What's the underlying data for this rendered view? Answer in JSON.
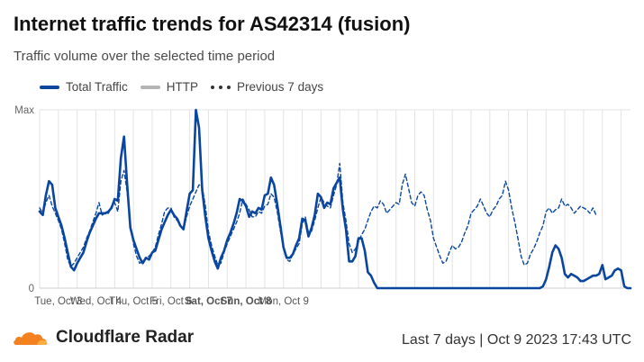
{
  "title": "Internet traffic trends for AS42314 (fusion)",
  "subtitle": "Traffic volume over the selected time period",
  "legend": [
    {
      "name": "Total Traffic"
    },
    {
      "name": "HTTP"
    },
    {
      "name": "Previous 7 days"
    }
  ],
  "footer": {
    "brand": "Cloudflare Radar",
    "info": "Last 7 days | Oct 9 2023 17:43 UTC"
  },
  "colors": {
    "total": "#0a46a0",
    "http": "#b5b5b5",
    "previous": "#0a46a0",
    "grid": "#e3e3e3",
    "logo": "#f48120"
  },
  "chart_data": {
    "type": "line",
    "x_start": "Oct 2 12:00",
    "x_step_hours": 2,
    "x_ticks": [
      {
        "label": "Tue, Oct 3",
        "index": 6,
        "bold": false
      },
      {
        "label": "Wed, Oct 4",
        "index": 18,
        "bold": false
      },
      {
        "label": "Thu, Oct 5",
        "index": 30,
        "bold": false
      },
      {
        "label": "Fri, Oct 6",
        "index": 42,
        "bold": false
      },
      {
        "label": "Sat, Oct 7",
        "index": 54,
        "bold": true
      },
      {
        "label": "Sun, Oct 8",
        "index": 66,
        "bold": true
      },
      {
        "label": "Mon, Oct 9",
        "index": 78,
        "bold": false
      }
    ],
    "y_ticks": [
      {
        "label": "Max",
        "value": 1
      },
      {
        "label": "0",
        "value": 0
      }
    ],
    "ylim": [
      0,
      1
    ],
    "grid": true,
    "legend_position": "top-left",
    "series": [
      {
        "name": "Total Traffic",
        "style": "solid",
        "values": [
          0.43,
          0.41,
          0.52,
          0.6,
          0.58,
          0.45,
          0.4,
          0.35,
          0.28,
          0.2,
          0.12,
          0.1,
          0.14,
          0.17,
          0.2,
          0.26,
          0.31,
          0.35,
          0.39,
          0.42,
          0.42,
          0.42,
          0.43,
          0.45,
          0.5,
          0.49,
          0.73,
          0.85,
          0.58,
          0.34,
          0.27,
          0.22,
          0.17,
          0.14,
          0.17,
          0.16,
          0.2,
          0.21,
          0.27,
          0.33,
          0.37,
          0.41,
          0.44,
          0.41,
          0.39,
          0.35,
          0.33,
          0.43,
          0.53,
          0.55,
          1.0,
          0.9,
          0.55,
          0.4,
          0.28,
          0.21,
          0.15,
          0.11,
          0.17,
          0.21,
          0.27,
          0.31,
          0.36,
          0.42,
          0.5,
          0.49,
          0.46,
          0.4,
          0.43,
          0.42,
          0.45,
          0.44,
          0.52,
          0.53,
          0.62,
          0.58,
          0.47,
          0.35,
          0.23,
          0.17,
          0.17,
          0.19,
          0.24,
          0.28,
          0.39,
          0.38,
          0.29,
          0.34,
          0.41,
          0.53,
          0.51,
          0.45,
          0.48,
          0.47,
          0.56,
          0.59,
          0.62,
          0.44,
          0.33,
          0.15,
          0.15,
          0.18,
          0.28,
          0.28,
          0.21,
          0.09,
          0.07,
          0.03,
          0.0,
          0.0,
          0.0,
          0.0,
          0.0,
          0.0,
          0.0,
          0.0,
          0.0,
          0.0,
          0.0,
          0.0,
          0.0,
          0.0,
          0.0,
          0.0,
          0.0,
          0.0,
          0.0,
          0.0,
          0.0,
          0.0,
          0.0,
          0.0,
          0.0,
          0.0,
          0.0,
          0.0,
          0.0,
          0.0,
          0.0,
          0.0,
          0.0,
          0.0,
          0.0,
          0.0,
          0.0,
          0.0,
          0.0,
          0.0,
          0.0,
          0.0,
          0.0,
          0.0,
          0.0,
          0.0,
          0.0,
          0.0,
          0.0,
          0.0,
          0.0,
          0.0,
          0.0,
          0.01,
          0.05,
          0.12,
          0.2,
          0.24,
          0.22,
          0.17,
          0.08,
          0.06,
          0.08,
          0.07,
          0.06,
          0.04,
          0.04,
          0.05,
          0.06,
          0.07,
          0.07,
          0.08,
          0.13,
          0.05,
          0.06,
          0.07,
          0.1,
          0.11,
          0.1,
          0.01,
          0.0,
          0.0
        ]
      },
      {
        "name": "Previous 7 days",
        "style": "dashed",
        "values": [
          0.45,
          0.42,
          0.48,
          0.52,
          0.46,
          0.42,
          0.38,
          0.33,
          0.25,
          0.16,
          0.12,
          0.14,
          0.17,
          0.2,
          0.23,
          0.28,
          0.32,
          0.37,
          0.42,
          0.48,
          0.41,
          0.42,
          0.42,
          0.46,
          0.48,
          0.43,
          0.6,
          0.66,
          0.54,
          0.35,
          0.25,
          0.18,
          0.14,
          0.15,
          0.17,
          0.18,
          0.2,
          0.23,
          0.3,
          0.36,
          0.43,
          0.45,
          0.45,
          0.4,
          0.38,
          0.35,
          0.33,
          0.4,
          0.46,
          0.5,
          0.54,
          0.58,
          0.57,
          0.46,
          0.32,
          0.24,
          0.18,
          0.13,
          0.14,
          0.2,
          0.25,
          0.29,
          0.33,
          0.37,
          0.42,
          0.5,
          0.47,
          0.44,
          0.4,
          0.4,
          0.43,
          0.42,
          0.46,
          0.47,
          0.53,
          0.51,
          0.43,
          0.32,
          0.24,
          0.16,
          0.15,
          0.19,
          0.22,
          0.25,
          0.36,
          0.4,
          0.31,
          0.32,
          0.38,
          0.45,
          0.51,
          0.48,
          0.46,
          0.45,
          0.52,
          0.58,
          0.7,
          0.48,
          0.38,
          0.25,
          0.2,
          0.22,
          0.26,
          0.3,
          0.33,
          0.38,
          0.43,
          0.46,
          0.45,
          0.49,
          0.47,
          0.42,
          0.44,
          0.46,
          0.48,
          0.47,
          0.58,
          0.64,
          0.56,
          0.48,
          0.46,
          0.52,
          0.54,
          0.52,
          0.44,
          0.38,
          0.28,
          0.23,
          0.18,
          0.14,
          0.15,
          0.2,
          0.24,
          0.22,
          0.23,
          0.26,
          0.31,
          0.35,
          0.42,
          0.44,
          0.46,
          0.5,
          0.46,
          0.42,
          0.4,
          0.44,
          0.46,
          0.5,
          0.52,
          0.6,
          0.55,
          0.45,
          0.37,
          0.28,
          0.18,
          0.13,
          0.14,
          0.19,
          0.22,
          0.26,
          0.31,
          0.35,
          0.43,
          0.45,
          0.42,
          0.44,
          0.45,
          0.5,
          0.46,
          0.47,
          0.45,
          0.42,
          0.44,
          0.46,
          0.45,
          0.44,
          0.42,
          0.45,
          0.41
        ]
      }
    ]
  }
}
